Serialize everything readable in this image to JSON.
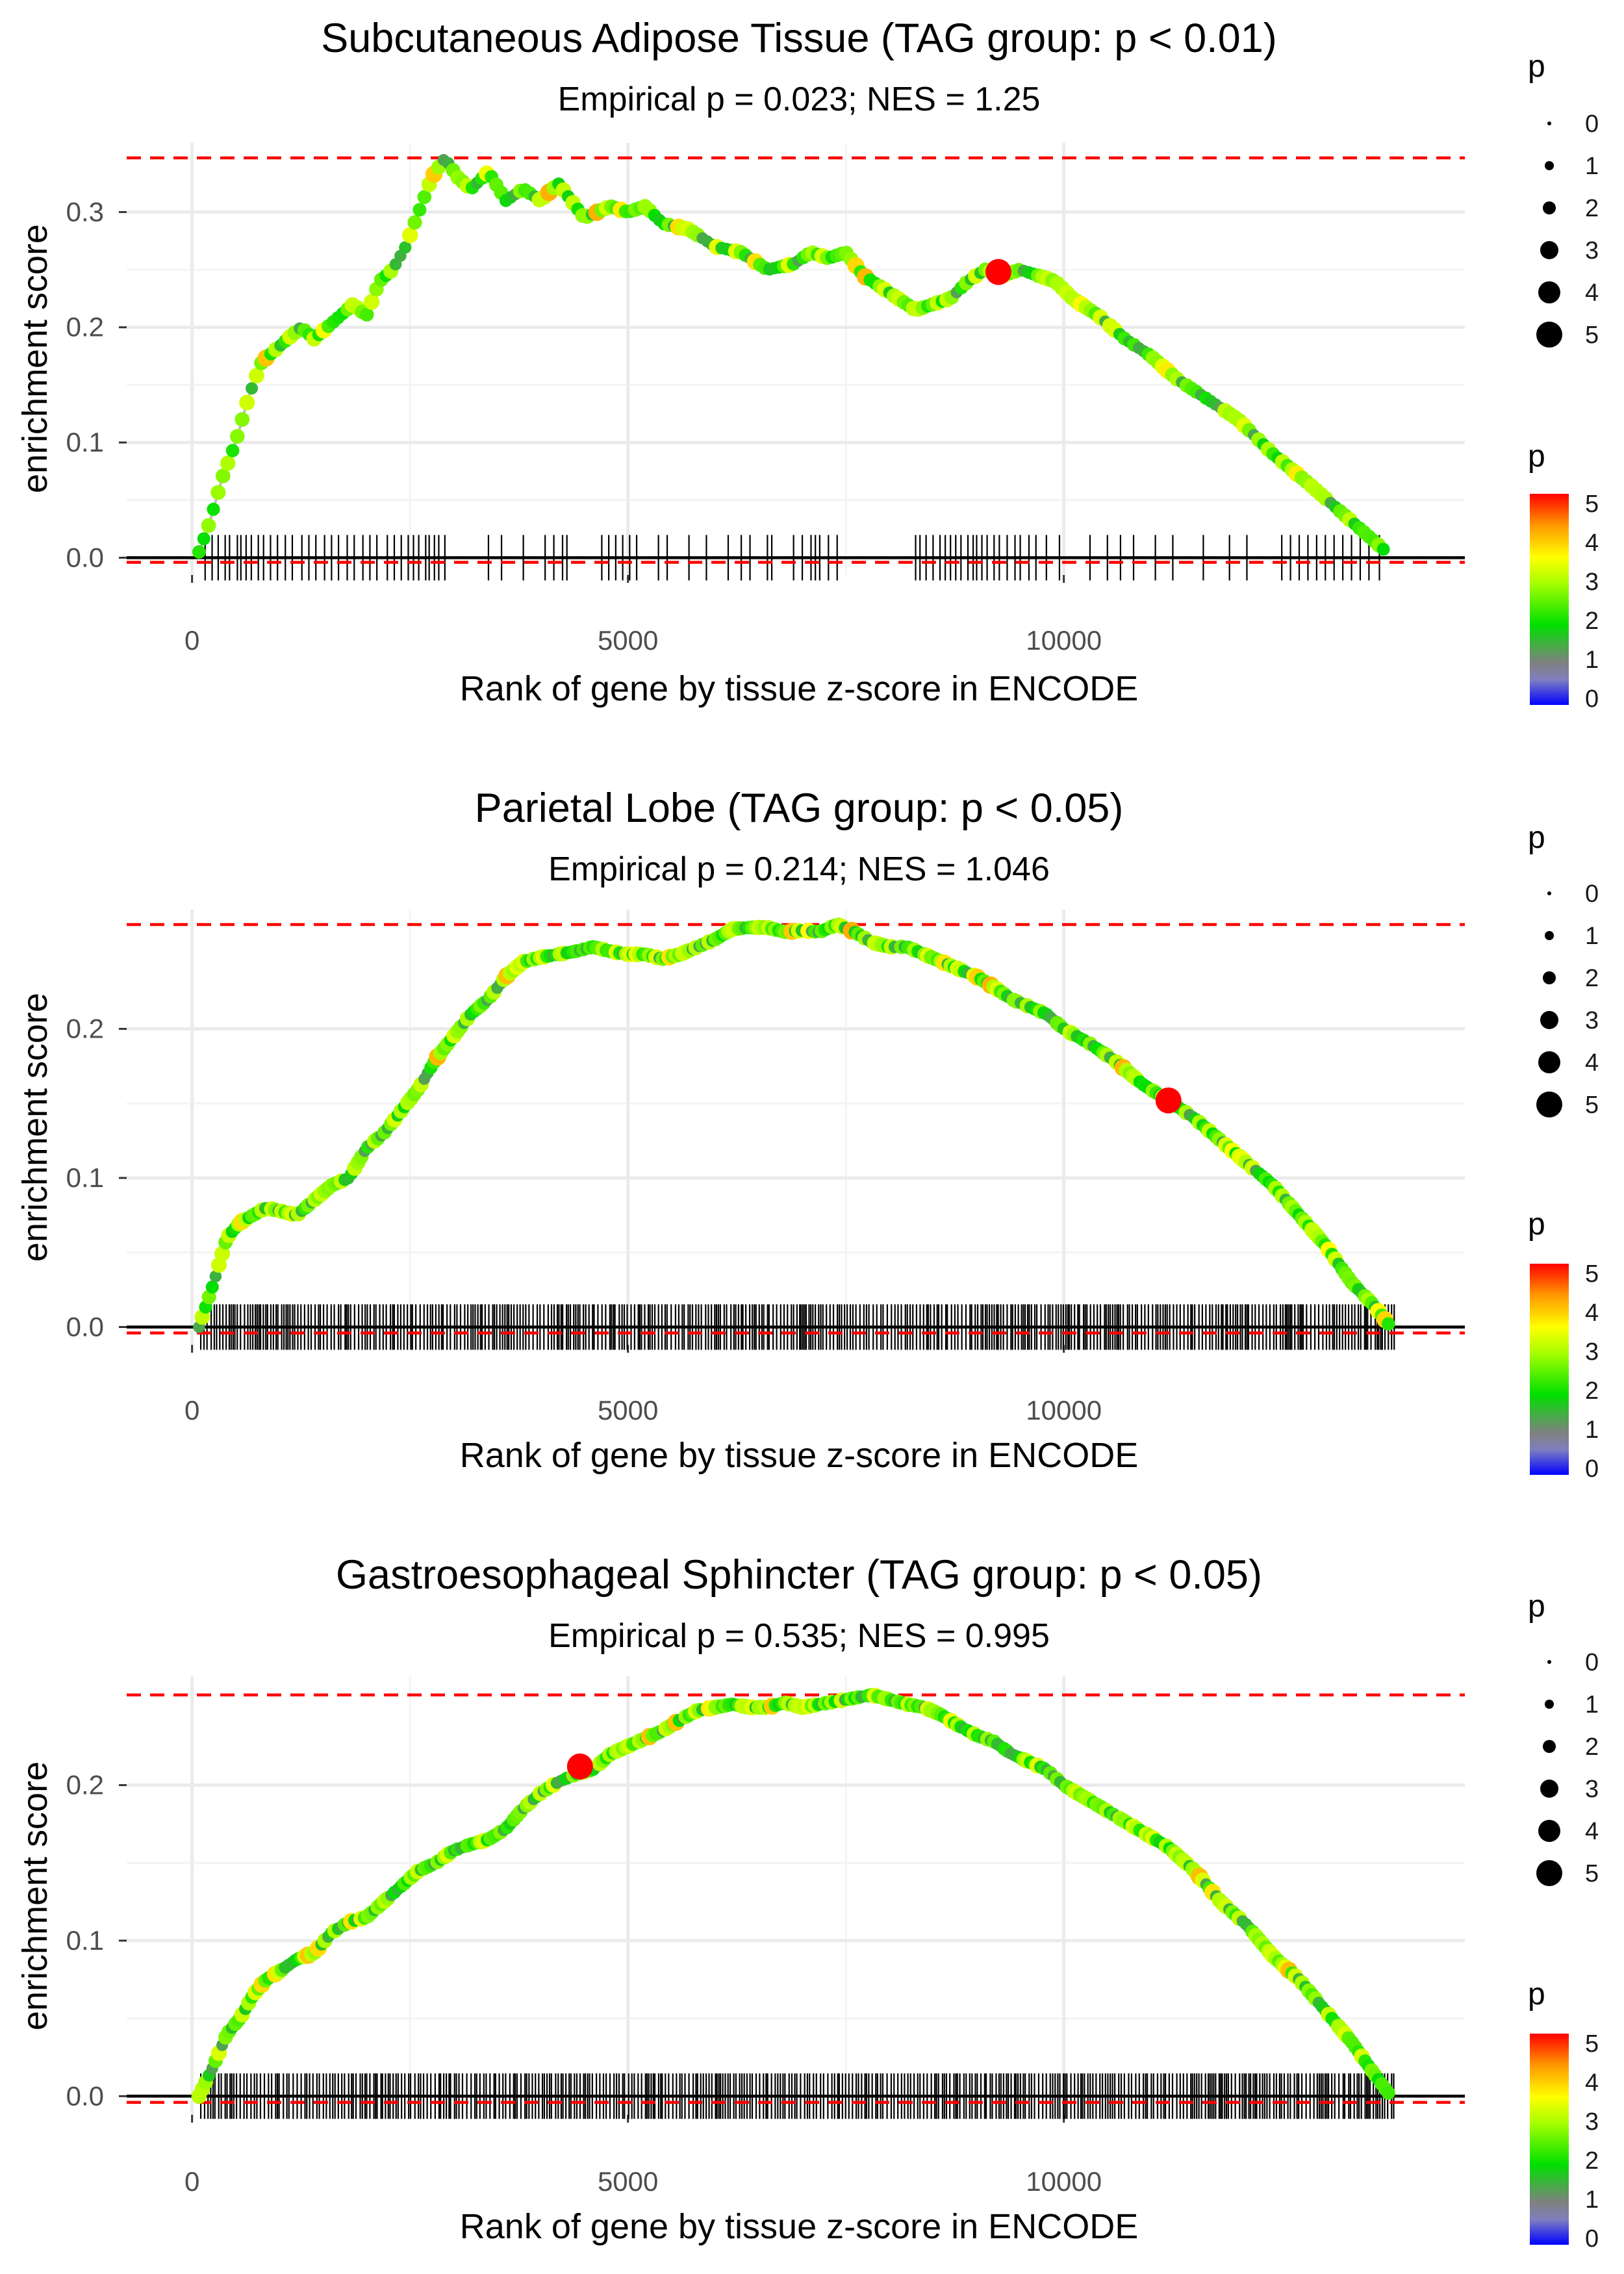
{
  "chart_data": [
    {
      "type": "line",
      "title": "Subcutaneous Adipose Tissue (TAG group: p < 0.01)",
      "subtitle": "Empirical p = 0.023; NES = 1.25",
      "xlabel": "Rank of gene by tissue z-score in ENCODE",
      "ylabel": "enrichment score",
      "xlim": [
        -750,
        14600
      ],
      "ylim": [
        -0.015,
        0.36
      ],
      "x_ticks": [
        0,
        5000,
        10000
      ],
      "x_tick_labels": [
        "0",
        "5000",
        "10000"
      ],
      "y_ticks": [
        0.0,
        0.1,
        0.2,
        0.3
      ],
      "y_tick_labels": [
        "0.0",
        "0.1",
        "0.2",
        "0.3"
      ],
      "max_es": 0.347,
      "min_es": -0.004,
      "es_curve": {
        "x": [
          80,
          200,
          350,
          500,
          650,
          800,
          950,
          1100,
          1250,
          1400,
          1550,
          1700,
          1850,
          2000,
          2150,
          2300,
          2450,
          2600,
          2750,
          2900,
          3050,
          3200,
          3400,
          3600,
          3800,
          4000,
          4200,
          4500,
          4800,
          5000,
          5200,
          5400,
          5700,
          6000,
          6300,
          6600,
          6900,
          7100,
          7300,
          7500,
          7700,
          8000,
          8300,
          8500,
          8700,
          8900,
          9100,
          9300,
          9500,
          9700,
          9900,
          10100,
          10400,
          10700,
          11000,
          11300,
          11600,
          12000,
          12400,
          12800,
          13100,
          13400,
          13700
        ],
        "y": [
          0.005,
          0.03,
          0.07,
          0.1,
          0.14,
          0.17,
          0.18,
          0.19,
          0.2,
          0.19,
          0.2,
          0.21,
          0.22,
          0.21,
          0.24,
          0.25,
          0.27,
          0.3,
          0.33,
          0.347,
          0.33,
          0.32,
          0.335,
          0.31,
          0.32,
          0.31,
          0.325,
          0.295,
          0.305,
          0.3,
          0.305,
          0.29,
          0.285,
          0.27,
          0.265,
          0.25,
          0.255,
          0.265,
          0.26,
          0.265,
          0.245,
          0.23,
          0.215,
          0.22,
          0.225,
          0.24,
          0.25,
          0.245,
          0.25,
          0.245,
          0.24,
          0.225,
          0.21,
          0.19,
          0.175,
          0.155,
          0.14,
          0.12,
          0.09,
          0.065,
          0.045,
          0.025,
          0.005
        ]
      },
      "rug_x": [
        150,
        230,
        300,
        380,
        430,
        520,
        560,
        620,
        680,
        760,
        820,
        900,
        980,
        1070,
        1150,
        1260,
        1340,
        1420,
        1520,
        1600,
        1680,
        1780,
        1860,
        1960,
        2040,
        2120,
        2240,
        2320,
        2400,
        2480,
        2540,
        2600,
        2680,
        2720,
        2780,
        2830,
        2900,
        3400,
        3550,
        3800,
        4050,
        4150,
        4250,
        4300,
        4700,
        4780,
        4860,
        4940,
        5020,
        5100,
        5350,
        5450,
        5700,
        5900,
        6150,
        6300,
        6400,
        6600,
        6650,
        6900,
        7000,
        7100,
        7150,
        7200,
        7300,
        7400,
        8300,
        8350,
        8420,
        8500,
        8580,
        8640,
        8700,
        8760,
        8820,
        8900,
        8960,
        9000,
        9060,
        9120,
        9200,
        9260,
        9350,
        9440,
        9500,
        9600,
        9680,
        9800,
        9950,
        10300,
        10500,
        10650,
        10800,
        11050,
        11250,
        11600,
        11900,
        12100,
        12500,
        12600,
        12700,
        12800,
        12900,
        13000,
        13100,
        13200,
        13300,
        13400,
        13500,
        13620
      ],
      "highlight_point": {
        "x": 9250,
        "y": 0.248,
        "p": 5
      },
      "color_scale": {
        "name": "p",
        "min": 0,
        "max": 5,
        "ticks": [
          "5",
          "4",
          "3",
          "2",
          "1",
          "0"
        ]
      },
      "size_scale": {
        "name": "p",
        "ticks": [
          "0",
          "1",
          "2",
          "3",
          "4",
          "5"
        ]
      }
    },
    {
      "type": "line",
      "title": "Parietal Lobe (TAG group: p < 0.05)",
      "subtitle": "Empirical p = 0.214; NES = 1.046",
      "xlabel": "Rank of gene by tissue z-score in ENCODE",
      "ylabel": "enrichment score",
      "xlim": [
        -750,
        14600
      ],
      "ylim": [
        -0.012,
        0.28
      ],
      "x_ticks": [
        0,
        5000,
        10000
      ],
      "x_tick_labels": [
        "0",
        "5000",
        "10000"
      ],
      "y_ticks": [
        0.0,
        0.1,
        0.2
      ],
      "y_tick_labels": [
        "0.0",
        "0.1",
        "0.2"
      ],
      "max_es": 0.27,
      "min_es": -0.004,
      "es_curve": {
        "x": [
          80,
          250,
          400,
          550,
          700,
          850,
          1000,
          1200,
          1400,
          1600,
          1800,
          2000,
          2200,
          2400,
          2600,
          2800,
          3000,
          3200,
          3400,
          3600,
          3800,
          4000,
          4200,
          4400,
          4600,
          4800,
          5000,
          5200,
          5400,
          5600,
          5800,
          6000,
          6200,
          6400,
          6600,
          6800,
          7000,
          7200,
          7400,
          7600,
          7800,
          8000,
          8200,
          8400,
          8600,
          8800,
          9000,
          9200,
          9400,
          9600,
          9800,
          10000,
          10300,
          10600,
          10900,
          11200,
          11500,
          11800,
          12100,
          12400,
          12700,
          13000,
          13300,
          13550,
          13750
        ],
        "y": [
          0.0,
          0.03,
          0.06,
          0.07,
          0.075,
          0.08,
          0.078,
          0.075,
          0.085,
          0.095,
          0.1,
          0.12,
          0.13,
          0.145,
          0.16,
          0.18,
          0.195,
          0.21,
          0.22,
          0.235,
          0.245,
          0.248,
          0.25,
          0.252,
          0.255,
          0.252,
          0.25,
          0.25,
          0.247,
          0.25,
          0.255,
          0.26,
          0.267,
          0.268,
          0.268,
          0.265,
          0.266,
          0.265,
          0.27,
          0.265,
          0.258,
          0.255,
          0.255,
          0.25,
          0.245,
          0.24,
          0.235,
          0.228,
          0.22,
          0.215,
          0.21,
          0.2,
          0.19,
          0.178,
          0.163,
          0.152,
          0.14,
          0.125,
          0.11,
          0.095,
          0.075,
          0.055,
          0.03,
          0.015,
          0.0
        ]
      },
      "rug": {
        "dense": true,
        "from": 100,
        "to": 13800
      },
      "highlight_point": {
        "x": 11200,
        "y": 0.152,
        "p": 5
      },
      "color_scale": {
        "name": "p",
        "min": 0,
        "max": 5,
        "ticks": [
          "5",
          "4",
          "3",
          "2",
          "1",
          "0"
        ]
      },
      "size_scale": {
        "name": "p",
        "ticks": [
          "0",
          "1",
          "2",
          "3",
          "4",
          "5"
        ]
      }
    },
    {
      "type": "line",
      "title": "Gastroesophageal Sphincter (TAG group: p < 0.05)",
      "subtitle": "Empirical p = 0.535; NES = 0.995",
      "xlabel": "Rank of gene by tissue z-score in ENCODE",
      "ylabel": "enrichment score",
      "xlim": [
        -750,
        14600
      ],
      "ylim": [
        -0.012,
        0.27
      ],
      "x_ticks": [
        0,
        5000,
        10000
      ],
      "x_tick_labels": [
        "0",
        "5000",
        "10000"
      ],
      "y_ticks": [
        0.0,
        0.1,
        0.2
      ],
      "y_tick_labels": [
        "0.0",
        "0.1",
        "0.2"
      ],
      "max_es": 0.258,
      "min_es": -0.004,
      "es_curve": {
        "x": [
          80,
          250,
          400,
          550,
          700,
          850,
          1000,
          1200,
          1400,
          1600,
          1800,
          2000,
          2200,
          2400,
          2600,
          2800,
          3000,
          3200,
          3400,
          3600,
          3800,
          4000,
          4200,
          4400,
          4600,
          4800,
          5000,
          5200,
          5400,
          5600,
          5800,
          6000,
          6200,
          6400,
          6600,
          6800,
          7000,
          7200,
          7400,
          7600,
          7800,
          8000,
          8200,
          8400,
          8600,
          8800,
          9000,
          9200,
          9400,
          9600,
          9800,
          10000,
          10300,
          10600,
          10900,
          11200,
          11500,
          11800,
          12100,
          12400,
          12700,
          13000,
          13300,
          13550,
          13750
        ],
        "y": [
          0.0,
          0.02,
          0.04,
          0.05,
          0.065,
          0.075,
          0.08,
          0.088,
          0.092,
          0.105,
          0.112,
          0.115,
          0.125,
          0.135,
          0.145,
          0.15,
          0.158,
          0.162,
          0.165,
          0.172,
          0.185,
          0.195,
          0.202,
          0.207,
          0.21,
          0.22,
          0.225,
          0.23,
          0.235,
          0.242,
          0.248,
          0.25,
          0.252,
          0.25,
          0.25,
          0.253,
          0.25,
          0.252,
          0.254,
          0.256,
          0.258,
          0.255,
          0.252,
          0.25,
          0.245,
          0.238,
          0.232,
          0.228,
          0.22,
          0.215,
          0.21,
          0.2,
          0.19,
          0.18,
          0.17,
          0.16,
          0.145,
          0.125,
          0.11,
          0.09,
          0.075,
          0.055,
          0.035,
          0.015,
          0.0
        ]
      },
      "rug": {
        "dense": true,
        "from": 100,
        "to": 13800
      },
      "highlight_point": {
        "x": 4450,
        "y": 0.212,
        "p": 5
      },
      "color_scale": {
        "name": "p",
        "min": 0,
        "max": 5,
        "ticks": [
          "5",
          "4",
          "3",
          "2",
          "1",
          "0"
        ]
      },
      "size_scale": {
        "name": "p",
        "ticks": [
          "0",
          "1",
          "2",
          "3",
          "4",
          "5"
        ]
      }
    }
  ]
}
